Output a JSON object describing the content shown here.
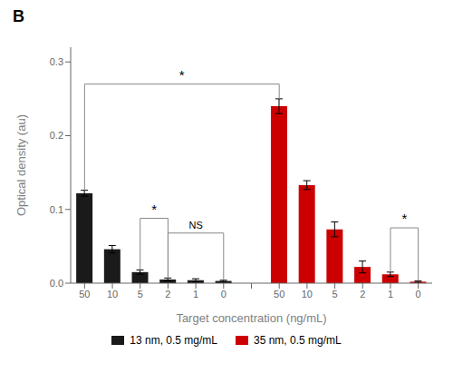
{
  "chart_data": {
    "type": "bar",
    "title": "B",
    "xlabel": "Target concentration (ng/mL)",
    "ylabel": "Optical density (au)",
    "categories": [
      "50",
      "10",
      "5",
      "2",
      "1",
      "0",
      null,
      "50",
      "10",
      "5",
      "2",
      "1",
      "0"
    ],
    "series": [
      {
        "name": "13 nm, 0.5 mg/mL",
        "color": "#1a1a1a",
        "values": [
          0.122,
          0.046,
          0.015,
          0.005,
          0.004,
          0.003,
          null,
          null,
          null,
          null,
          null,
          null,
          null
        ],
        "errors": [
          0.004,
          0.005,
          0.003,
          0.002,
          0.002,
          0.001,
          null,
          null,
          null,
          null,
          null,
          null,
          null
        ]
      },
      {
        "name": "35 nm, 0.5 mg/mL",
        "color": "#cc0000",
        "values": [
          null,
          null,
          null,
          null,
          null,
          null,
          null,
          0.24,
          0.133,
          0.073,
          0.022,
          0.012,
          0.002
        ],
        "errors": [
          null,
          null,
          null,
          null,
          null,
          null,
          null,
          0.01,
          0.006,
          0.01,
          0.008,
          0.003,
          0.001
        ]
      }
    ],
    "ylim": [
      0,
      0.32
    ],
    "yticks": [
      {
        "value": 0.0,
        "label": "0.0"
      },
      0.1,
      0.2,
      0.3
    ],
    "annotations": [
      {
        "text": "*",
        "from": 0,
        "to": 7,
        "y": 0.27
      },
      {
        "text": "*",
        "from": 2,
        "to": 3,
        "y": 0.088
      },
      {
        "text": "NS",
        "from": 3,
        "to": 5,
        "y": 0.068
      },
      {
        "text": "*",
        "from": 11,
        "to": 12,
        "y": 0.075
      }
    ],
    "legend": "bottom"
  }
}
